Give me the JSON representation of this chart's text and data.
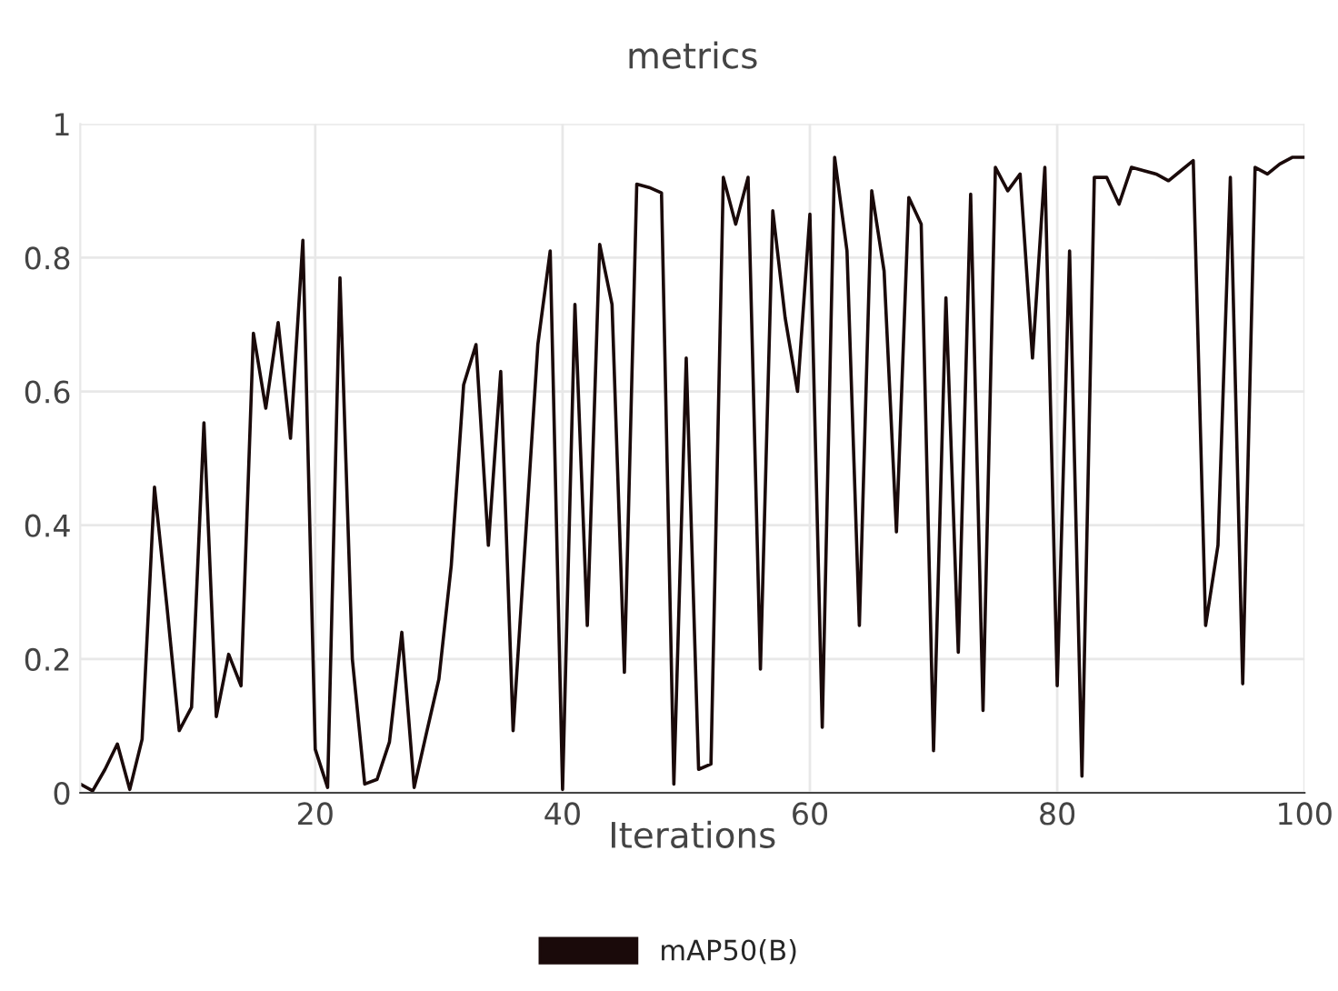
{
  "chart_data": {
    "type": "line",
    "title": "metrics",
    "xlabel": "Iterations",
    "x": [
      1,
      2,
      3,
      4,
      5,
      6,
      7,
      8,
      9,
      10,
      11,
      12,
      13,
      14,
      15,
      16,
      17,
      18,
      19,
      20,
      21,
      22,
      23,
      24,
      25,
      26,
      27,
      28,
      29,
      30,
      31,
      32,
      33,
      34,
      35,
      36,
      37,
      38,
      39,
      40,
      41,
      42,
      43,
      44,
      45,
      46,
      47,
      48,
      49,
      50,
      51,
      52,
      53,
      54,
      55,
      56,
      57,
      58,
      59,
      60,
      61,
      62,
      63,
      64,
      65,
      66,
      67,
      68,
      69,
      70,
      71,
      72,
      73,
      74,
      75,
      76,
      77,
      78,
      79,
      80,
      81,
      82,
      83,
      84,
      85,
      86,
      87,
      88,
      89,
      90,
      91,
      92,
      93,
      94,
      95,
      96,
      97,
      98,
      99,
      100
    ],
    "series": [
      {
        "name": "mAP50(B)",
        "color": "#1a0a0a",
        "values": [
          0.013,
          0.003,
          0.035,
          0.073,
          0.005,
          0.08,
          0.457,
          0.28,
          0.093,
          0.128,
          0.553,
          0.114,
          0.207,
          0.16,
          0.687,
          0.575,
          0.703,
          0.53,
          0.826,
          0.065,
          0.008,
          0.77,
          0.2,
          0.013,
          0.02,
          0.076,
          0.24,
          0.008,
          0.09,
          0.17,
          0.34,
          0.61,
          0.67,
          0.37,
          0.63,
          0.093,
          0.38,
          0.67,
          0.81,
          0.005,
          0.73,
          0.25,
          0.82,
          0.73,
          0.18,
          0.91,
          0.905,
          0.897,
          0.013,
          0.65,
          0.035,
          0.043,
          0.92,
          0.85,
          0.92,
          0.185,
          0.87,
          0.71,
          0.6,
          0.865,
          0.098,
          0.95,
          0.81,
          0.25,
          0.9,
          0.78,
          0.39,
          0.89,
          0.85,
          0.063,
          0.74,
          0.21,
          0.895,
          0.123,
          0.935,
          0.9,
          0.925,
          0.65,
          0.935,
          0.16,
          0.81,
          0.025,
          0.92,
          0.92,
          0.88,
          0.935,
          0.93,
          0.925,
          0.915,
          0.93,
          0.945,
          0.25,
          0.37,
          0.92,
          0.163,
          0.935,
          0.925,
          0.94,
          0.95,
          0.95
        ]
      }
    ],
    "xlim": [
      1,
      100
    ],
    "xticks": [
      20,
      40,
      60,
      80,
      100
    ],
    "ylim": [
      0,
      1
    ],
    "yticks": [
      0,
      0.2,
      0.4,
      0.6,
      0.8,
      1
    ],
    "grid": true,
    "legend": "bottom",
    "line_style": "solid",
    "marker": "none"
  }
}
